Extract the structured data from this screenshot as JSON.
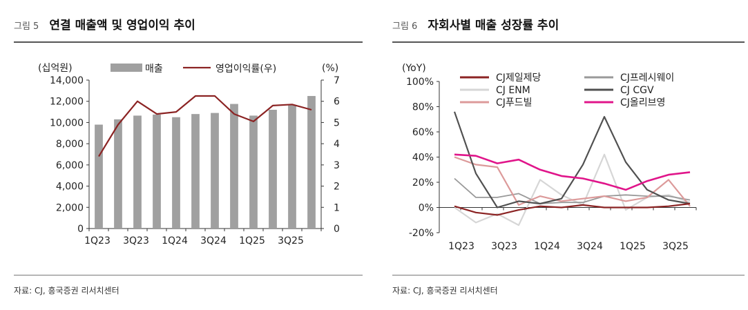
{
  "left": {
    "fig_no": "그림 5",
    "title": "연결 매출액 및 영업이익 추이",
    "source": "자료: CJ, 흥국증권 리서치센터"
  },
  "right": {
    "fig_no": "그림 6",
    "title": "자회사별 매출 성장률 추이",
    "source": "자료: CJ, 흥국증권 리서치센터"
  },
  "chart_data": [
    {
      "type": "bar+line",
      "categories": [
        "1Q23",
        "2Q23",
        "3Q23",
        "4Q23",
        "1Q24",
        "2Q24",
        "3Q24",
        "4Q24",
        "1Q25",
        "2Q25",
        "3Q25",
        "4Q25"
      ],
      "x_tick_labels": [
        "1Q23",
        "3Q23",
        "1Q24",
        "3Q24",
        "1Q25",
        "3Q25"
      ],
      "y_left_unit": "(십억원)",
      "y_right_unit": "(%)",
      "y_left_ticks": [
        "0",
        "2,000",
        "4,000",
        "6,000",
        "8,000",
        "10,000",
        "12,000",
        "14,000"
      ],
      "y_right_ticks": [
        "0",
        "1",
        "2",
        "3",
        "4",
        "5",
        "6",
        "7"
      ],
      "ylim_left": [
        0,
        14000
      ],
      "ylim_right": [
        0,
        7
      ],
      "legend": {
        "bar": "매출",
        "line": "영업이익률(우)"
      },
      "series": [
        {
          "name": "매출",
          "axis": "left",
          "type": "bar",
          "color": "#a0a0a0",
          "values": [
            9800,
            10300,
            10650,
            10750,
            10500,
            10800,
            10900,
            11750,
            10650,
            11200,
            11650,
            12500
          ]
        },
        {
          "name": "영업이익률(우)",
          "axis": "right",
          "type": "line",
          "color": "#8b2323",
          "values": [
            3.4,
            4.9,
            6.0,
            5.4,
            5.5,
            6.25,
            6.25,
            5.4,
            5.05,
            5.8,
            5.85,
            5.6
          ]
        }
      ]
    },
    {
      "type": "line",
      "categories": [
        "1Q23",
        "2Q23",
        "3Q23",
        "4Q23",
        "1Q24",
        "2Q24",
        "3Q24",
        "4Q24",
        "1Q25",
        "2Q25",
        "3Q25",
        "4Q25"
      ],
      "x_tick_labels": [
        "1Q23",
        "3Q23",
        "1Q24",
        "3Q24",
        "1Q25",
        "3Q25"
      ],
      "y_unit": "(YoY)",
      "y_ticks": [
        "-20%",
        "0%",
        "20%",
        "40%",
        "60%",
        "80%",
        "100%"
      ],
      "ylim": [
        -20,
        100
      ],
      "series": [
        {
          "name": "CJ제일제당",
          "color": "#8b2323",
          "width": 2.2,
          "values": [
            1,
            -4,
            -6,
            -2,
            1,
            0,
            2,
            0,
            0,
            0,
            1,
            3
          ]
        },
        {
          "name": "CJ프레시웨이",
          "color": "#999999",
          "width": 1.8,
          "values": [
            23,
            8,
            8,
            11,
            3,
            4,
            4,
            9,
            10,
            9,
            9,
            6
          ]
        },
        {
          "name": "CJ ENM",
          "color": "#d6d6d6",
          "width": 2.2,
          "values": [
            0,
            -12,
            -5,
            -14,
            22,
            10,
            2,
            42,
            -2,
            8,
            10,
            4
          ]
        },
        {
          "name": "CJ CGV",
          "color": "#505050",
          "width": 2.2,
          "values": [
            76,
            27,
            0,
            5,
            3,
            7,
            34,
            72,
            36,
            14,
            6,
            3
          ]
        },
        {
          "name": "CJ푸드빌",
          "color": "#dc9a9a",
          "width": 2.2,
          "values": [
            40,
            34,
            32,
            2,
            9,
            5,
            7,
            9,
            5,
            8,
            22,
            1
          ]
        },
        {
          "name": "CJ올리브영",
          "color": "#e0158a",
          "width": 2.6,
          "values": [
            42,
            41,
            35,
            38,
            30,
            25,
            23,
            19,
            14,
            21,
            26,
            28
          ]
        }
      ]
    }
  ]
}
